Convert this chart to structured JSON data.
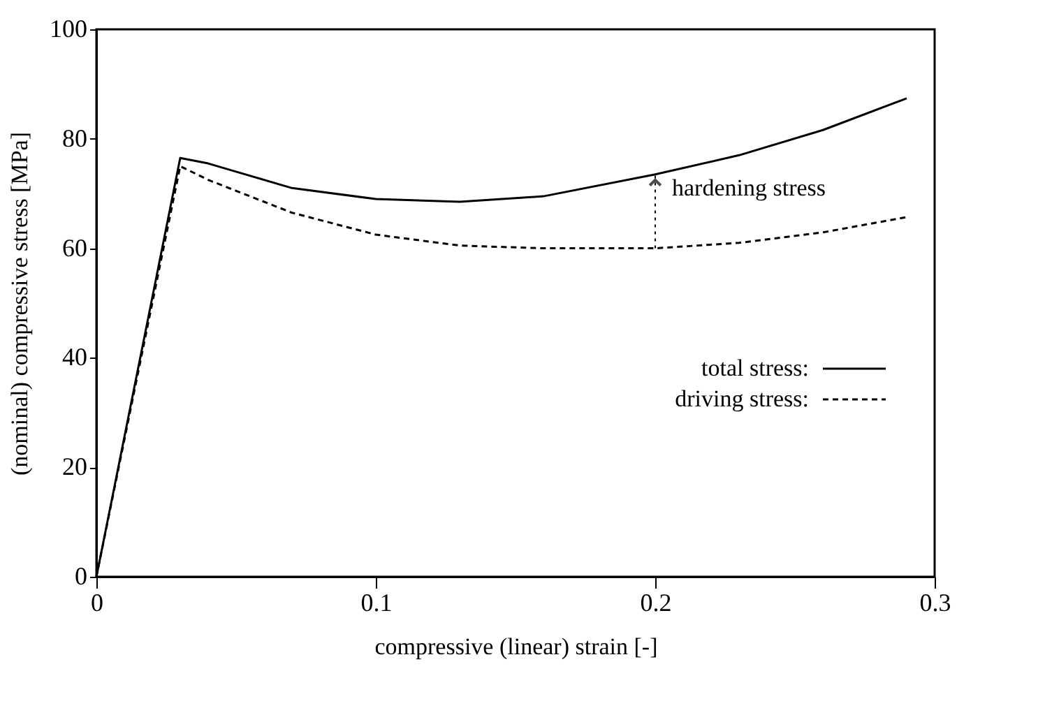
{
  "chart_data": {
    "type": "line",
    "xlabel": "compressive (linear) strain [-]",
    "ylabel": "(nominal) compressive stress [MPa]",
    "xlim": [
      0,
      0.3
    ],
    "ylim": [
      0,
      100
    ],
    "xticks": [
      0,
      0.1,
      0.2,
      0.3
    ],
    "yticks": [
      0,
      20,
      40,
      60,
      80,
      100
    ],
    "grid": false,
    "legend": "right",
    "marker": "none",
    "series": [
      {
        "name": "total stress:",
        "color": "#000000",
        "line_style": "solid",
        "x": [
          0,
          0.03,
          0.04,
          0.05,
          0.07,
          0.1,
          0.13,
          0.16,
          0.2,
          0.23,
          0.26,
          0.29
        ],
        "values": [
          0,
          76.5,
          75.5,
          74,
          71,
          69,
          68.5,
          69.5,
          73.5,
          77,
          81.6,
          87.4
        ]
      },
      {
        "name": "driving stress:",
        "color": "#000000",
        "line_style": "dashed",
        "x": [
          0,
          0.03,
          0.04,
          0.05,
          0.07,
          0.1,
          0.13,
          0.16,
          0.2,
          0.23,
          0.26,
          0.29
        ],
        "values": [
          0,
          75,
          72.5,
          70.5,
          66.5,
          62.5,
          60.5,
          60,
          60,
          61,
          62.9,
          65.7
        ]
      }
    ],
    "annotations": [
      {
        "text": "hardening stress",
        "x": 0.2,
        "y": 73.5
      }
    ]
  }
}
